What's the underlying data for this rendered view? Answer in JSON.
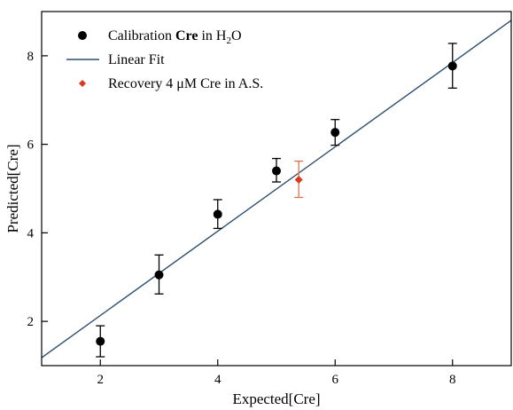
{
  "chart_data": {
    "type": "scatter",
    "xlabel": "Expected[Cre]",
    "ylabel": "Predicted[Cre]",
    "xlim": [
      1,
      9
    ],
    "ylim": [
      1,
      9
    ],
    "x_ticks": [
      2,
      4,
      6,
      8
    ],
    "y_ticks": [
      2,
      4,
      6,
      8
    ],
    "grid": false,
    "legend_position": "top-left",
    "series": [
      {
        "name_parts": [
          "Calibration ",
          "Cre",
          " in H",
          "2",
          "O"
        ],
        "marker": "circle",
        "color": "#000000",
        "points": [
          {
            "x": 2,
            "y": 1.55,
            "err_low": 1.2,
            "err_high": 1.9
          },
          {
            "x": 3,
            "y": 3.05,
            "err_low": 2.62,
            "err_high": 3.5
          },
          {
            "x": 4,
            "y": 4.42,
            "err_low": 4.1,
            "err_high": 4.75
          },
          {
            "x": 5,
            "y": 5.4,
            "err_low": 5.15,
            "err_high": 5.68
          },
          {
            "x": 6,
            "y": 6.27,
            "err_low": 5.98,
            "err_high": 6.56
          },
          {
            "x": 8,
            "y": 7.77,
            "err_low": 7.27,
            "err_high": 8.28
          }
        ]
      },
      {
        "name": "Linear Fit",
        "marker": "line",
        "color": "#2c4e70",
        "line": {
          "x0": 1,
          "y0": 1.18,
          "x1": 9,
          "y1": 8.8
        }
      },
      {
        "name": "Recovery 4 μM Cre in A.S.",
        "marker": "diamond",
        "color": "#d93a1f",
        "error_color": "#d9754f",
        "points": [
          {
            "x": 5.38,
            "y": 5.2,
            "err_low": 4.8,
            "err_high": 5.62
          }
        ]
      }
    ]
  }
}
